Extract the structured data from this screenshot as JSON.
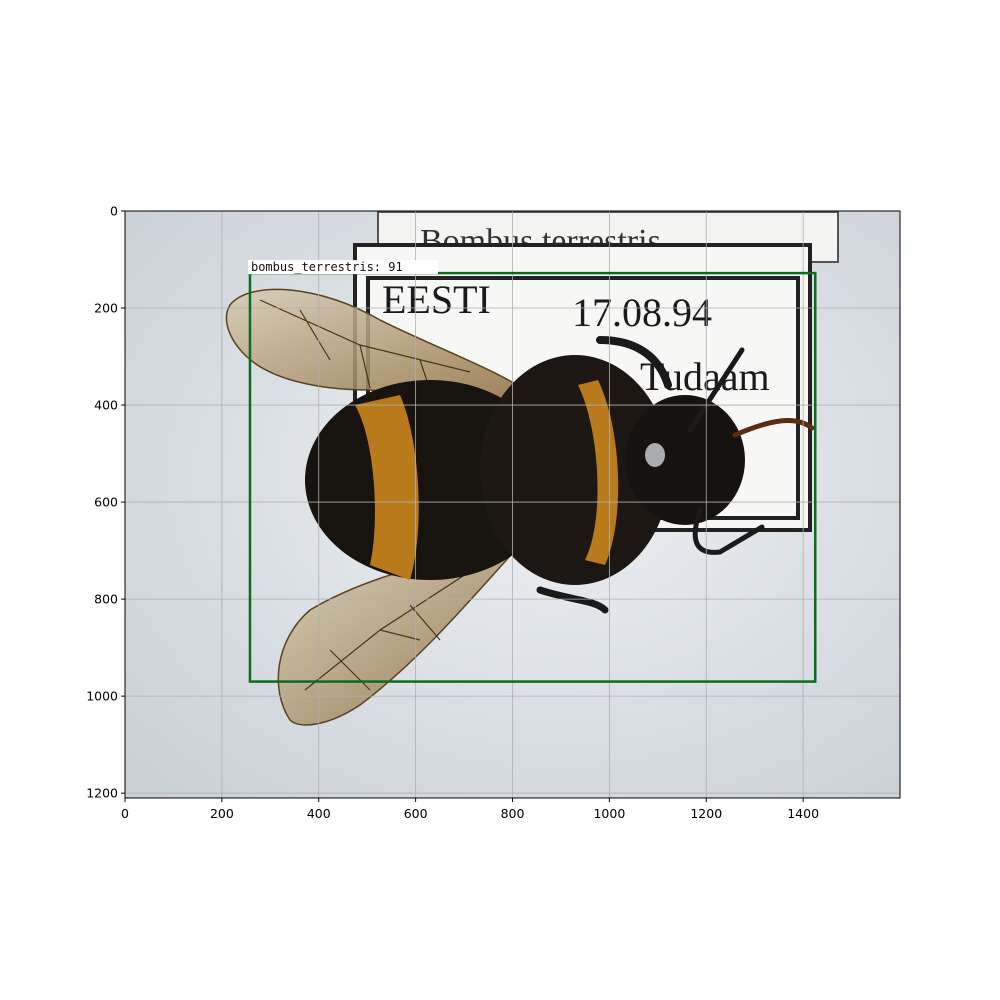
{
  "image": {
    "width": 1600,
    "height": 1210,
    "subject": "bumblebee specimen",
    "background_color": "#e4e8ec"
  },
  "axes": {
    "xlim": [
      0,
      1600
    ],
    "ylim": [
      1210,
      0
    ],
    "x_ticks": [
      0,
      200,
      400,
      600,
      800,
      1000,
      1200,
      1400
    ],
    "y_ticks": [
      0,
      200,
      400,
      600,
      800,
      1000,
      1200
    ],
    "grid": true,
    "grid_color": "#b0b0b0"
  },
  "specimen_labels": {
    "top_line": "Bombus terrestris",
    "country": "EESTI",
    "date": "17.08.94",
    "place": "Tudaam"
  },
  "detections": [
    {
      "label": "bombus_terrestris: 91",
      "x_min": 258,
      "y_min": 128,
      "x_max": 1425,
      "y_max": 970,
      "box_color": "#0b6b1e"
    }
  ]
}
